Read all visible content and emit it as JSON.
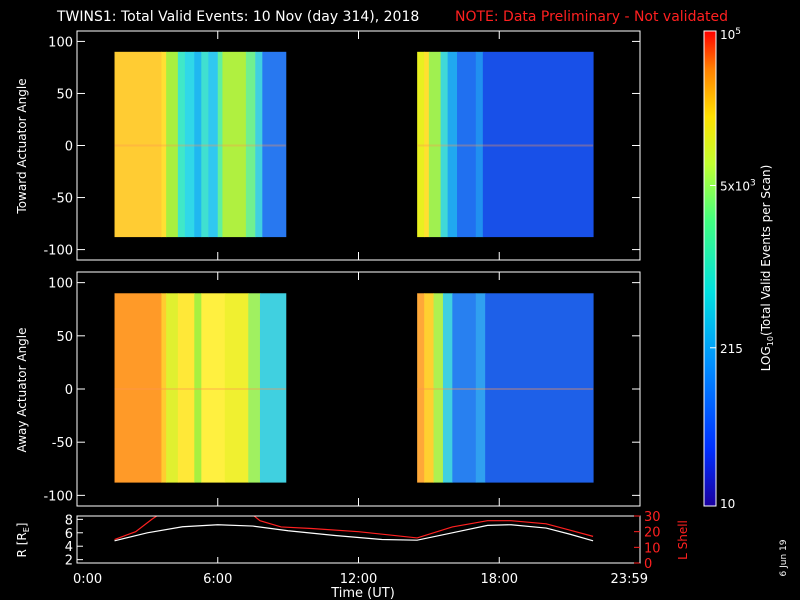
{
  "title": "TWINS1: Total Valid Events: 10 Nov (day 314), 2018",
  "note": "NOTE: Data Preliminary - Not validated",
  "colors": {
    "frame": "#ffffff",
    "note": "#ff2020",
    "r_line": "#ffffff",
    "lshell_line": "#ff2020"
  },
  "colorbar": {
    "label": "LOG10(Total Valid Events per Scan)",
    "label_main": "LOG",
    "label_sub": "10",
    "label_rest": "(Total Valid Events per Scan)",
    "ticks": [
      {
        "label": "10",
        "value": 10
      },
      {
        "label": "215",
        "value": 215
      },
      {
        "label": "5x10",
        "sup": "3",
        "value": 5000
      },
      {
        "label": "10",
        "sup": "5",
        "value": 100000
      }
    ],
    "range": [
      10,
      100000
    ],
    "scale": "log"
  },
  "time_axis": {
    "label": "Time (UT)",
    "ticks": [
      "0:00",
      "6:00",
      "12:00",
      "18:00",
      "23:59"
    ],
    "range_hours": [
      0,
      24
    ]
  },
  "stamp": "6 Jun 19",
  "chart_data": [
    {
      "type": "heatmap",
      "ylabel": "Toward Actuator Angle",
      "ylim": [
        -110,
        110
      ],
      "yticks": [
        100,
        50,
        0,
        -50,
        -100
      ],
      "blocks": [
        {
          "t_start": 1.6,
          "t_end": 8.9,
          "angle_range": [
            -88,
            90
          ],
          "bands": [
            [
              1.6,
              3.6,
              "#ffcc33"
            ],
            [
              3.6,
              3.8,
              "#ffe033"
            ],
            [
              3.8,
              4.3,
              "#a8f040"
            ],
            [
              4.3,
              4.6,
              "#40e8c8"
            ],
            [
              4.6,
              5.0,
              "#30d8e8"
            ],
            [
              5.0,
              5.3,
              "#20b8f0"
            ],
            [
              5.3,
              5.6,
              "#40e0d0"
            ],
            [
              5.6,
              6.0,
              "#30c8f0"
            ],
            [
              6.0,
              6.2,
              "#60f0a0"
            ],
            [
              6.2,
              7.2,
              "#b0f040"
            ],
            [
              7.2,
              7.6,
              "#70f090"
            ],
            [
              7.6,
              7.9,
              "#40d0e0"
            ],
            [
              7.9,
              8.9,
              "#2878f0"
            ]
          ]
        },
        {
          "t_start": 14.5,
          "t_end": 22.0,
          "angle_range": [
            -88,
            90
          ],
          "bands": [
            [
              14.5,
              14.8,
              "#e8f020"
            ],
            [
              14.8,
              15.0,
              "#ffe030"
            ],
            [
              15.0,
              15.5,
              "#a0f050"
            ],
            [
              15.5,
              15.8,
              "#40d8d8"
            ],
            [
              15.8,
              16.2,
              "#20a8f0"
            ],
            [
              16.2,
              17.0,
              "#2070f0"
            ],
            [
              17.0,
              17.3,
              "#2090f0"
            ],
            [
              17.3,
              22.0,
              "#1850e8"
            ]
          ]
        }
      ]
    },
    {
      "type": "heatmap",
      "ylabel": "Away Actuator Angle",
      "ylim": [
        -110,
        110
      ],
      "yticks": [
        100,
        50,
        0,
        -50,
        -100
      ],
      "blocks": [
        {
          "t_start": 1.6,
          "t_end": 8.9,
          "angle_range": [
            -88,
            90
          ],
          "bands": [
            [
              1.6,
              3.6,
              "#ff9a28"
            ],
            [
              3.6,
              3.8,
              "#ffcc30"
            ],
            [
              3.8,
              4.3,
              "#e0f030"
            ],
            [
              4.3,
              5.0,
              "#ffe838"
            ],
            [
              5.0,
              5.3,
              "#a8f040"
            ],
            [
              5.3,
              6.3,
              "#fff040"
            ],
            [
              6.3,
              7.3,
              "#f0f030"
            ],
            [
              7.3,
              7.8,
              "#a0f060"
            ],
            [
              7.8,
              8.9,
              "#40d0e0"
            ]
          ]
        },
        {
          "t_start": 14.5,
          "t_end": 22.0,
          "angle_range": [
            -88,
            90
          ],
          "bands": [
            [
              14.5,
              14.8,
              "#ffa838"
            ],
            [
              14.8,
              15.2,
              "#ffd030"
            ],
            [
              15.2,
              15.6,
              "#b0f050"
            ],
            [
              15.6,
              16.0,
              "#40d0e0"
            ],
            [
              16.0,
              17.0,
              "#2880f0"
            ],
            [
              17.0,
              17.4,
              "#30a0f0"
            ],
            [
              17.4,
              22.0,
              "#1e60e8"
            ]
          ]
        }
      ]
    },
    {
      "type": "line",
      "ylabel": "R [RE]",
      "ylabel_main": "R [R",
      "ylabel_sub": "E",
      "ylabel_end": "]",
      "ylim": [
        1.5,
        8.5
      ],
      "yticks": [
        2,
        4,
        6,
        8
      ],
      "y2label": "L Shell",
      "y2lim": [
        0,
        30
      ],
      "y2ticks": [
        0,
        10,
        20,
        30
      ],
      "series": [
        {
          "axis": "left",
          "points": [
            [
              1.6,
              4.8
            ],
            [
              3,
              6.0
            ],
            [
              4.5,
              6.9
            ],
            [
              6,
              7.2
            ],
            [
              7.5,
              7.0
            ],
            [
              9,
              6.3
            ],
            [
              11,
              5.6
            ],
            [
              13,
              5.0
            ],
            [
              14.5,
              4.9
            ],
            [
              16,
              6.0
            ],
            [
              17.5,
              7.1
            ],
            [
              18.5,
              7.2
            ],
            [
              20,
              6.7
            ],
            [
              21,
              5.8
            ],
            [
              22,
              4.8
            ]
          ]
        },
        {
          "axis": "right",
          "points": [
            [
              1.6,
              15
            ],
            [
              2.5,
              20
            ],
            [
              3.2,
              28
            ],
            [
              3.7,
              33
            ]
          ],
          "segments": [
            [
              [
                1.6,
                15
              ],
              [
                2.5,
                20
              ],
              [
                3.2,
                28
              ],
              [
                3.7,
                33
              ]
            ],
            [
              [
                7.3,
                33
              ],
              [
                7.8,
                27
              ],
              [
                8.7,
                23
              ],
              [
                10,
                22
              ],
              [
                12,
                20
              ],
              [
                14.5,
                16
              ],
              [
                16,
                23
              ],
              [
                17.5,
                27
              ],
              [
                18.5,
                27
              ],
              [
                20,
                25
              ],
              [
                21,
                21
              ],
              [
                22,
                17
              ]
            ]
          ]
        }
      ]
    }
  ]
}
